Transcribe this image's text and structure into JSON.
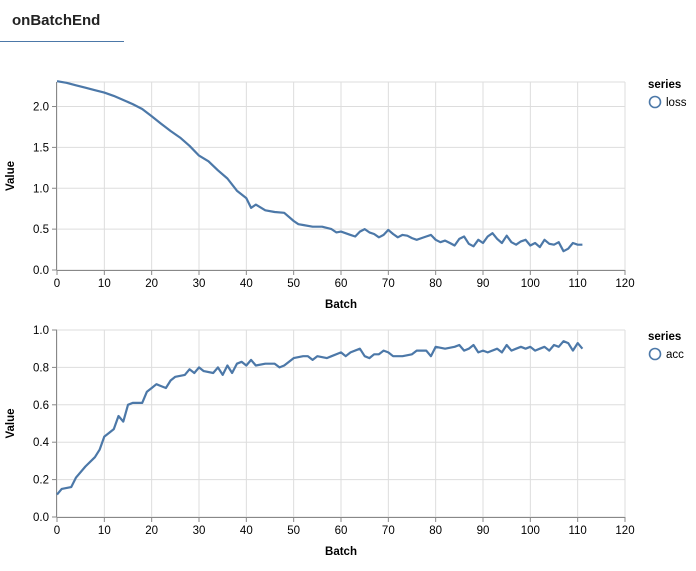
{
  "tab": {
    "label": "onBatchEnd"
  },
  "chart_data": [
    {
      "type": "line",
      "xlabel": "Batch",
      "ylabel": "Value",
      "xlim": [
        0,
        120
      ],
      "ylim": [
        0,
        2.3
      ],
      "xticks": [
        "0",
        "10",
        "20",
        "30",
        "40",
        "50",
        "60",
        "70",
        "80",
        "90",
        "100",
        "110",
        "120"
      ],
      "yticks": [
        "0.0",
        "0.5",
        "1.0",
        "1.5",
        "2.0"
      ],
      "xtick_values": [
        0,
        10,
        20,
        30,
        40,
        50,
        60,
        70,
        80,
        90,
        100,
        110,
        120
      ],
      "ytick_values": [
        0,
        0.5,
        1.0,
        1.5,
        2.0
      ],
      "grid": true,
      "legend": {
        "title": "series",
        "placement": "right"
      },
      "series": [
        {
          "name": "loss",
          "color": "#4c78a8",
          "points": [
            [
              0,
              2.31
            ],
            [
              2,
              2.29
            ],
            [
              4,
              2.26
            ],
            [
              6,
              2.23
            ],
            [
              8,
              2.2
            ],
            [
              10,
              2.17
            ],
            [
              12,
              2.13
            ],
            [
              14,
              2.08
            ],
            [
              16,
              2.03
            ],
            [
              18,
              1.97
            ],
            [
              20,
              1.88
            ],
            [
              22,
              1.79
            ],
            [
              24,
              1.7
            ],
            [
              26,
              1.62
            ],
            [
              28,
              1.52
            ],
            [
              30,
              1.4
            ],
            [
              32,
              1.33
            ],
            [
              34,
              1.22
            ],
            [
              36,
              1.12
            ],
            [
              38,
              0.97
            ],
            [
              40,
              0.88
            ],
            [
              41,
              0.76
            ],
            [
              42,
              0.8
            ],
            [
              44,
              0.73
            ],
            [
              46,
              0.71
            ],
            [
              48,
              0.7
            ],
            [
              50,
              0.6
            ],
            [
              51,
              0.56
            ],
            [
              52,
              0.55
            ],
            [
              54,
              0.53
            ],
            [
              56,
              0.53
            ],
            [
              58,
              0.5
            ],
            [
              59,
              0.46
            ],
            [
              60,
              0.47
            ],
            [
              62,
              0.43
            ],
            [
              63,
              0.41
            ],
            [
              64,
              0.47
            ],
            [
              65,
              0.5
            ],
            [
              66,
              0.46
            ],
            [
              67,
              0.44
            ],
            [
              68,
              0.4
            ],
            [
              69,
              0.43
            ],
            [
              70,
              0.49
            ],
            [
              71,
              0.44
            ],
            [
              72,
              0.4
            ],
            [
              73,
              0.43
            ],
            [
              74,
              0.42
            ],
            [
              75,
              0.39
            ],
            [
              76,
              0.37
            ],
            [
              77,
              0.39
            ],
            [
              78,
              0.41
            ],
            [
              79,
              0.43
            ],
            [
              80,
              0.37
            ],
            [
              81,
              0.34
            ],
            [
              82,
              0.36
            ],
            [
              83,
              0.33
            ],
            [
              84,
              0.3
            ],
            [
              85,
              0.38
            ],
            [
              86,
              0.41
            ],
            [
              87,
              0.32
            ],
            [
              88,
              0.29
            ],
            [
              89,
              0.37
            ],
            [
              90,
              0.33
            ],
            [
              91,
              0.41
            ],
            [
              92,
              0.45
            ],
            [
              93,
              0.38
            ],
            [
              94,
              0.33
            ],
            [
              95,
              0.42
            ],
            [
              96,
              0.34
            ],
            [
              97,
              0.31
            ],
            [
              98,
              0.35
            ],
            [
              99,
              0.37
            ],
            [
              100,
              0.3
            ],
            [
              101,
              0.33
            ],
            [
              102,
              0.28
            ],
            [
              103,
              0.37
            ],
            [
              104,
              0.32
            ],
            [
              105,
              0.31
            ],
            [
              106,
              0.34
            ],
            [
              107,
              0.23
            ],
            [
              108,
              0.26
            ],
            [
              109,
              0.33
            ],
            [
              110,
              0.31
            ],
            [
              111,
              0.31
            ]
          ]
        }
      ]
    },
    {
      "type": "line",
      "xlabel": "Batch",
      "ylabel": "Value",
      "xlim": [
        0,
        120
      ],
      "ylim": [
        0,
        1.0
      ],
      "xticks": [
        "0",
        "10",
        "20",
        "30",
        "40",
        "50",
        "60",
        "70",
        "80",
        "90",
        "100",
        "110",
        "120"
      ],
      "yticks": [
        "0.0",
        "0.2",
        "0.4",
        "0.6",
        "0.8",
        "1.0"
      ],
      "xtick_values": [
        0,
        10,
        20,
        30,
        40,
        50,
        60,
        70,
        80,
        90,
        100,
        110,
        120
      ],
      "ytick_values": [
        0,
        0.2,
        0.4,
        0.6,
        0.8,
        1.0
      ],
      "grid": true,
      "legend": {
        "title": "series",
        "placement": "right"
      },
      "series": [
        {
          "name": "acc",
          "color": "#4c78a8",
          "points": [
            [
              0,
              0.12
            ],
            [
              1,
              0.15
            ],
            [
              3,
              0.16
            ],
            [
              4,
              0.21
            ],
            [
              6,
              0.27
            ],
            [
              8,
              0.32
            ],
            [
              9,
              0.36
            ],
            [
              10,
              0.43
            ],
            [
              11,
              0.45
            ],
            [
              12,
              0.47
            ],
            [
              13,
              0.54
            ],
            [
              14,
              0.51
            ],
            [
              15,
              0.6
            ],
            [
              16,
              0.61
            ],
            [
              18,
              0.61
            ],
            [
              19,
              0.67
            ],
            [
              20,
              0.69
            ],
            [
              21,
              0.71
            ],
            [
              22,
              0.7
            ],
            [
              23,
              0.69
            ],
            [
              24,
              0.73
            ],
            [
              25,
              0.75
            ],
            [
              27,
              0.76
            ],
            [
              28,
              0.79
            ],
            [
              29,
              0.77
            ],
            [
              30,
              0.8
            ],
            [
              31,
              0.78
            ],
            [
              33,
              0.77
            ],
            [
              34,
              0.8
            ],
            [
              35,
              0.76
            ],
            [
              36,
              0.81
            ],
            [
              37,
              0.77
            ],
            [
              38,
              0.82
            ],
            [
              39,
              0.83
            ],
            [
              40,
              0.81
            ],
            [
              41,
              0.84
            ],
            [
              42,
              0.81
            ],
            [
              44,
              0.82
            ],
            [
              46,
              0.82
            ],
            [
              47,
              0.8
            ],
            [
              48,
              0.81
            ],
            [
              50,
              0.85
            ],
            [
              52,
              0.86
            ],
            [
              53,
              0.86
            ],
            [
              54,
              0.84
            ],
            [
              55,
              0.86
            ],
            [
              57,
              0.85
            ],
            [
              58,
              0.86
            ],
            [
              60,
              0.88
            ],
            [
              61,
              0.86
            ],
            [
              62,
              0.88
            ],
            [
              64,
              0.9
            ],
            [
              65,
              0.86
            ],
            [
              66,
              0.85
            ],
            [
              67,
              0.87
            ],
            [
              68,
              0.87
            ],
            [
              69,
              0.89
            ],
            [
              70,
              0.88
            ],
            [
              71,
              0.86
            ],
            [
              73,
              0.86
            ],
            [
              75,
              0.87
            ],
            [
              76,
              0.89
            ],
            [
              78,
              0.89
            ],
            [
              79,
              0.86
            ],
            [
              80,
              0.91
            ],
            [
              82,
              0.9
            ],
            [
              84,
              0.91
            ],
            [
              85,
              0.92
            ],
            [
              86,
              0.89
            ],
            [
              87,
              0.9
            ],
            [
              88,
              0.92
            ],
            [
              89,
              0.88
            ],
            [
              90,
              0.89
            ],
            [
              91,
              0.88
            ],
            [
              93,
              0.9
            ],
            [
              94,
              0.88
            ],
            [
              95,
              0.92
            ],
            [
              96,
              0.89
            ],
            [
              97,
              0.9
            ],
            [
              98,
              0.91
            ],
            [
              99,
              0.9
            ],
            [
              100,
              0.91
            ],
            [
              101,
              0.89
            ],
            [
              102,
              0.9
            ],
            [
              103,
              0.91
            ],
            [
              104,
              0.89
            ],
            [
              105,
              0.92
            ],
            [
              106,
              0.91
            ],
            [
              107,
              0.94
            ],
            [
              108,
              0.93
            ],
            [
              109,
              0.89
            ],
            [
              110,
              0.93
            ],
            [
              111,
              0.9
            ]
          ]
        }
      ]
    }
  ]
}
